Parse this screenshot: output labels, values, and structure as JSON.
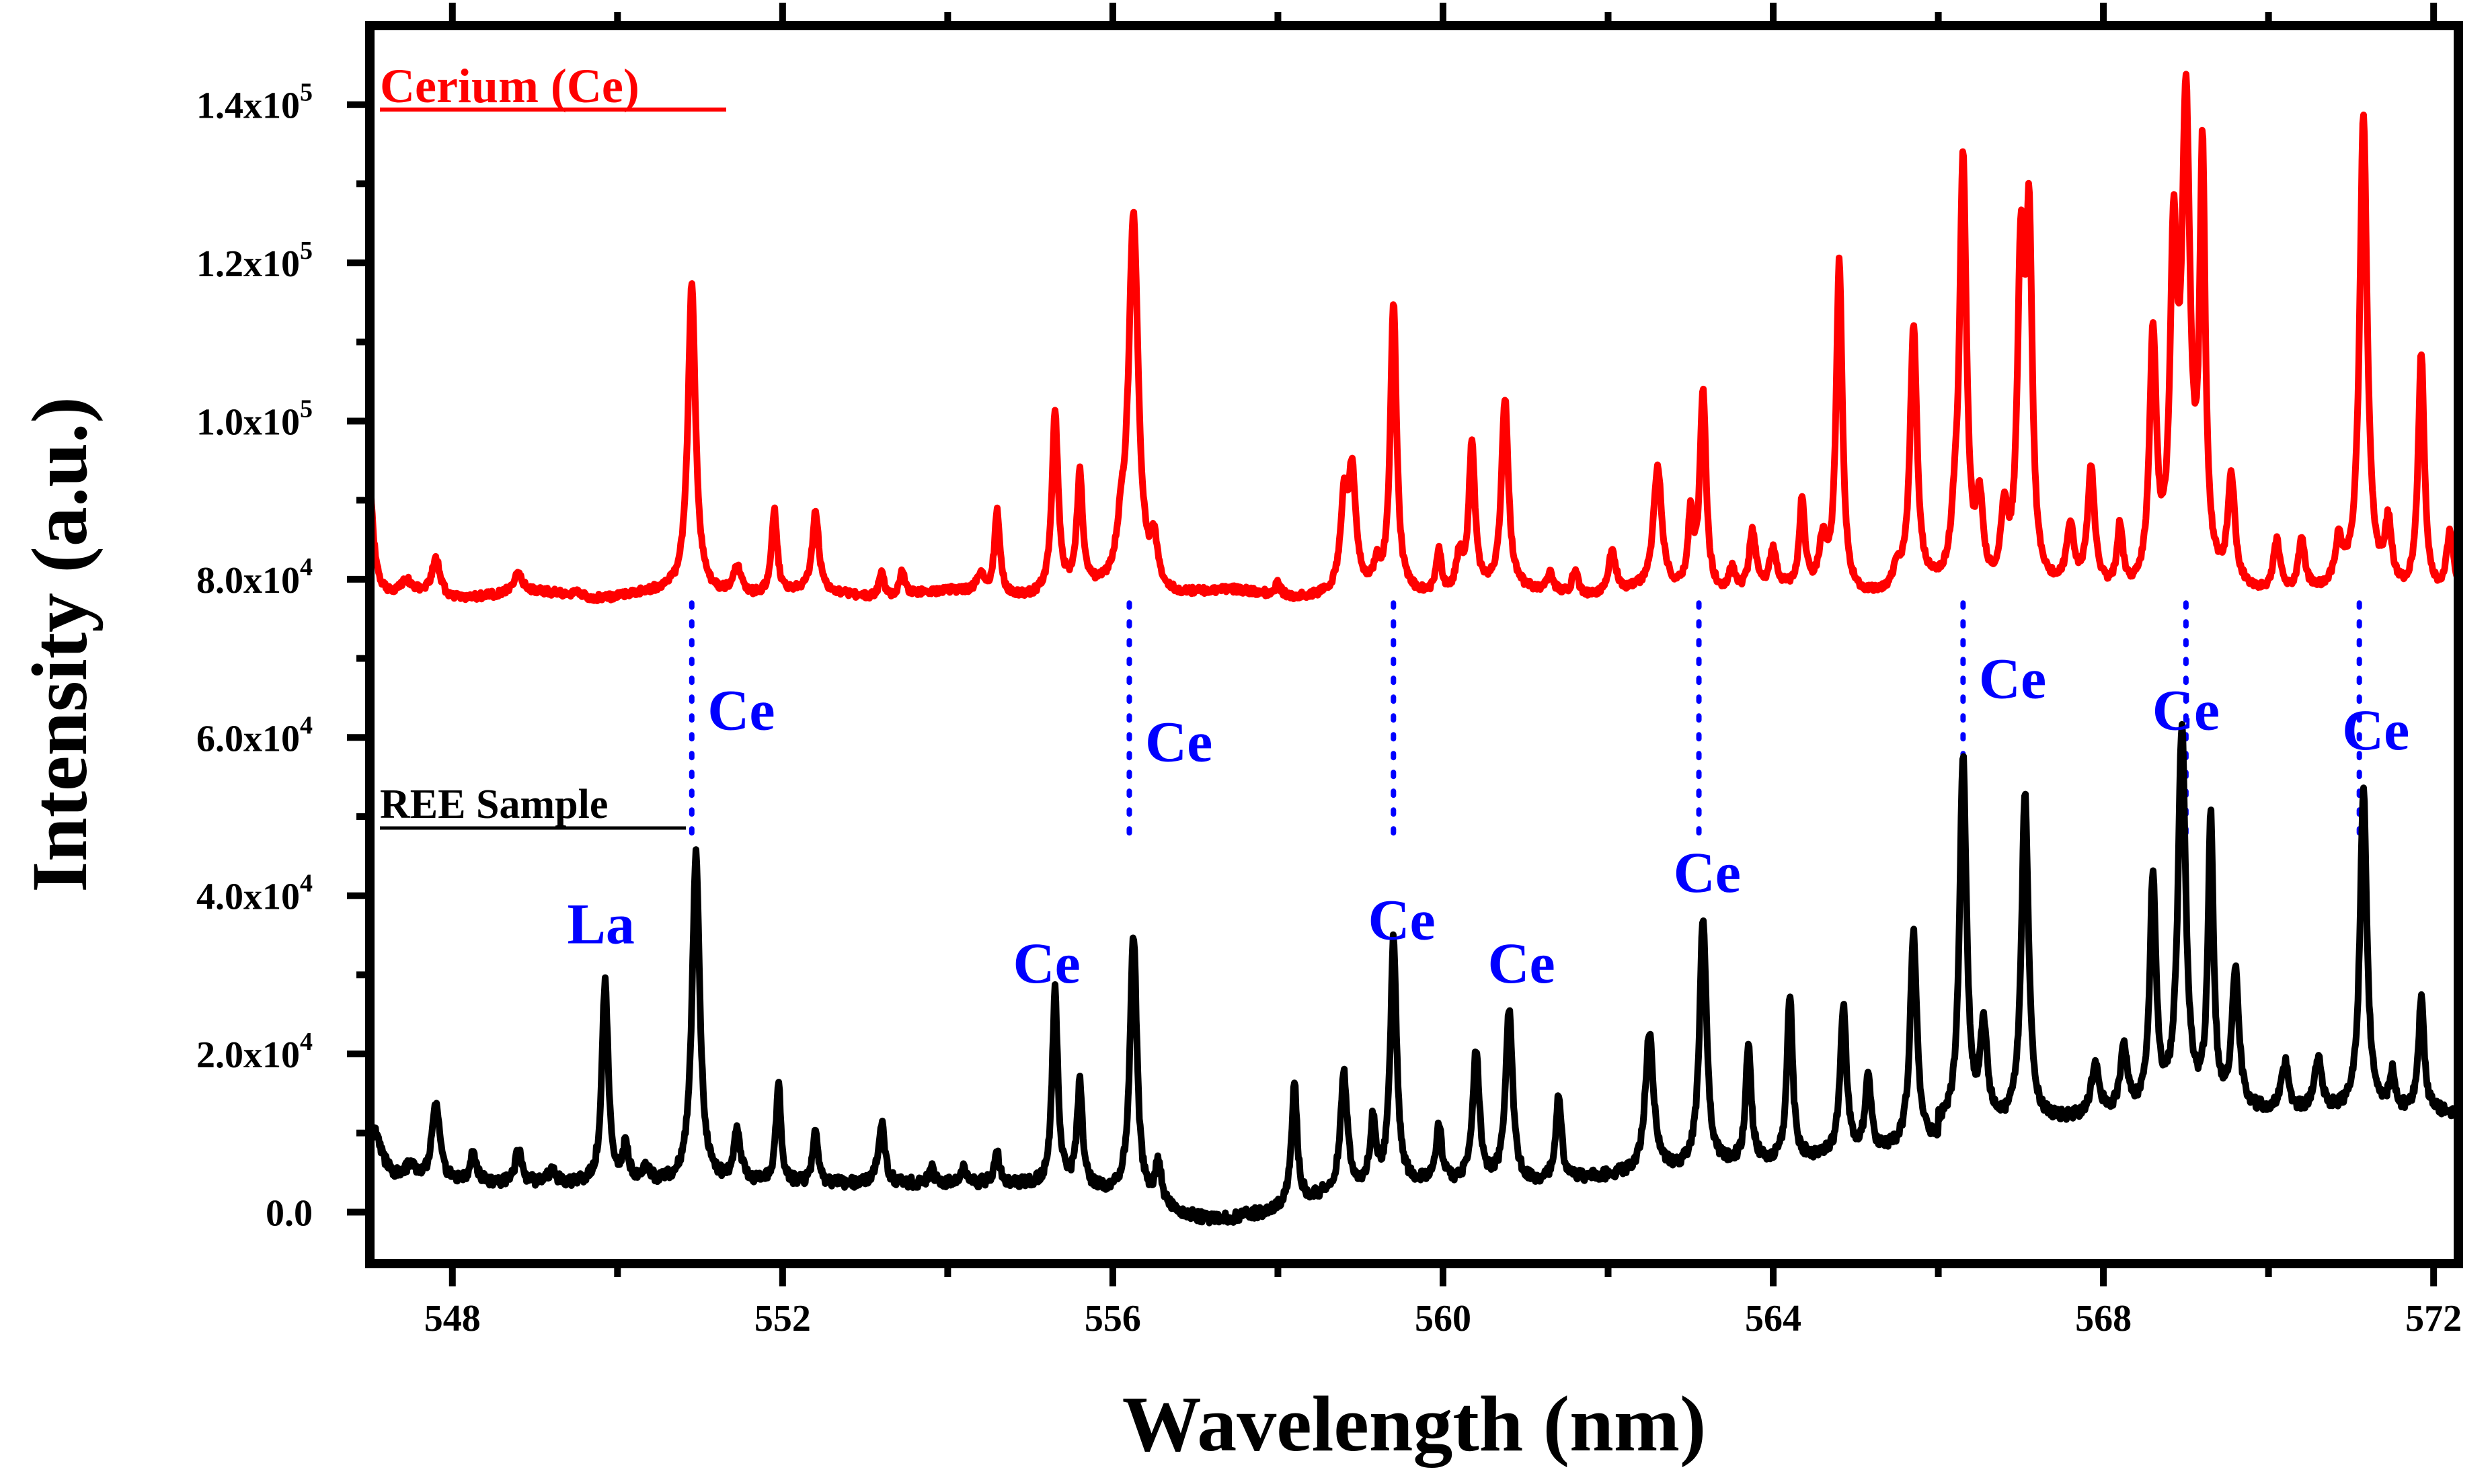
{
  "chart_data": {
    "type": "line",
    "xlabel": "Wavelength (nm)",
    "ylabel": "Intensity (a.u.)",
    "xlim": [
      547,
      572.3
    ],
    "ylim": [
      -6500,
      150000
    ],
    "x_ticks": [
      548,
      552,
      556,
      560,
      564,
      568,
      572
    ],
    "x_tick_labels": [
      "548",
      "552",
      "556",
      "560",
      "564",
      "568",
      "572"
    ],
    "y_ticks": [
      0,
      20000,
      40000,
      60000,
      80000,
      100000,
      120000,
      140000
    ],
    "y_tick_labels": [
      {
        "mantissa": "0.0",
        "exp": ""
      },
      {
        "mantissa": "2.0x10",
        "exp": "4"
      },
      {
        "mantissa": "4.0x10",
        "exp": "4"
      },
      {
        "mantissa": "6.0x10",
        "exp": "4"
      },
      {
        "mantissa": "8.0x10",
        "exp": "4"
      },
      {
        "mantissa": "1.0x10",
        "exp": "5"
      },
      {
        "mantissa": "1.2x10",
        "exp": "5"
      },
      {
        "mantissa": "1.4x10",
        "exp": "5"
      }
    ],
    "legend": {
      "cerium": "Cerium (Ce)",
      "ree": "REE Sample"
    },
    "colors": {
      "cerium": "#ff0000",
      "ree": "#000000",
      "annotation": "#0000ff"
    },
    "series": [
      {
        "name": "Cerium (Ce)",
        "color": "#ff0000",
        "baseline": 78000,
        "peaks": [
          [
            547.45,
            1500,
            0.08
          ],
          [
            547.8,
            4800,
            0.06
          ],
          [
            548.8,
            2500,
            0.05
          ],
          [
            549.5,
            800,
            0.05
          ],
          [
            550.9,
            39000,
            0.055
          ],
          [
            551.45,
            3500,
            0.07
          ],
          [
            551.9,
            10500,
            0.04
          ],
          [
            552.4,
            10000,
            0.045
          ],
          [
            553.2,
            3000,
            0.04
          ],
          [
            553.45,
            3000,
            0.04
          ],
          [
            554.4,
            2000,
            0.06
          ],
          [
            554.6,
            10500,
            0.04
          ],
          [
            555.3,
            22500,
            0.045
          ],
          [
            555.6,
            14500,
            0.04
          ],
          [
            556.1,
            5000,
            0.06
          ],
          [
            556.25,
            47500,
            0.07
          ],
          [
            556.5,
            5500,
            0.05
          ],
          [
            558.0,
            1500,
            0.04
          ],
          [
            558.8,
            11000,
            0.05
          ],
          [
            558.9,
            14500,
            0.05
          ],
          [
            559.2,
            2500,
            0.04
          ],
          [
            559.4,
            36500,
            0.045
          ],
          [
            559.95,
            5500,
            0.04
          ],
          [
            560.2,
            4500,
            0.05
          ],
          [
            560.35,
            18500,
            0.045
          ],
          [
            560.75,
            24000,
            0.05
          ],
          [
            561.3,
            2500,
            0.05
          ],
          [
            561.6,
            3000,
            0.05
          ],
          [
            562.05,
            5500,
            0.05
          ],
          [
            562.6,
            15500,
            0.06
          ],
          [
            563.0,
            9000,
            0.04
          ],
          [
            563.15,
            25500,
            0.045
          ],
          [
            563.5,
            3000,
            0.05
          ],
          [
            563.75,
            7500,
            0.05
          ],
          [
            564.0,
            5000,
            0.05
          ],
          [
            564.35,
            11000,
            0.04
          ],
          [
            564.6,
            6000,
            0.05
          ],
          [
            564.8,
            42000,
            0.045
          ],
          [
            565.5,
            2500,
            0.05
          ],
          [
            565.7,
            33000,
            0.05
          ],
          [
            566.2,
            5500,
            0.05
          ],
          [
            566.3,
            53500,
            0.05
          ],
          [
            566.5,
            10000,
            0.05
          ],
          [
            566.8,
            9000,
            0.05
          ],
          [
            567.0,
            40000,
            0.05
          ],
          [
            567.1,
            43000,
            0.045
          ],
          [
            567.6,
            7500,
            0.05
          ],
          [
            567.85,
            15000,
            0.05
          ],
          [
            568.2,
            8000,
            0.04
          ],
          [
            568.6,
            31500,
            0.05
          ],
          [
            568.85,
            40000,
            0.05
          ],
          [
            569.0,
            58500,
            0.06
          ],
          [
            569.2,
            52000,
            0.04
          ],
          [
            569.55,
            13500,
            0.05
          ],
          [
            570.1,
            6500,
            0.05
          ],
          [
            570.4,
            6500,
            0.05
          ],
          [
            570.85,
            5500,
            0.05
          ],
          [
            571.15,
            59500,
            0.055
          ],
          [
            571.45,
            8000,
            0.05
          ],
          [
            571.85,
            30500,
            0.045
          ],
          [
            572.2,
            7500,
            0.05
          ]
        ]
      },
      {
        "name": "REE Sample",
        "color": "#000000",
        "baseline": 3500,
        "peaks": [
          [
            547.05,
            6500,
            0.12
          ],
          [
            547.5,
            2000,
            0.08
          ],
          [
            547.8,
            9500,
            0.06
          ],
          [
            548.25,
            3500,
            0.05
          ],
          [
            548.8,
            4000,
            0.05
          ],
          [
            549.2,
            1500,
            0.06
          ],
          [
            549.85,
            25500,
            0.045
          ],
          [
            550.1,
            4500,
            0.04
          ],
          [
            550.35,
            2000,
            0.05
          ],
          [
            550.95,
            41500,
            0.055
          ],
          [
            551.45,
            6500,
            0.05
          ],
          [
            551.95,
            13000,
            0.035
          ],
          [
            552.4,
            7000,
            0.035
          ],
          [
            553.2,
            8000,
            0.045
          ],
          [
            553.8,
            2000,
            0.04
          ],
          [
            554.2,
            2000,
            0.04
          ],
          [
            554.6,
            3500,
            0.045
          ],
          [
            555.3,
            24500,
            0.04
          ],
          [
            555.6,
            13000,
            0.04
          ],
          [
            556.25,
            33500,
            0.05
          ],
          [
            556.55,
            5000,
            0.05
          ],
          [
            557.6,
            1000,
            0.04
          ],
          [
            558.2,
            15000,
            0.04
          ],
          [
            558.8,
            14500,
            0.05
          ],
          [
            559.15,
            8000,
            0.04
          ],
          [
            559.4,
            31000,
            0.045
          ],
          [
            559.95,
            7500,
            0.04
          ],
          [
            560.4,
            16500,
            0.05
          ],
          [
            560.8,
            22000,
            0.05
          ],
          [
            561.4,
            11000,
            0.04
          ],
          [
            562.5,
            17500,
            0.06
          ],
          [
            563.15,
            31500,
            0.05
          ],
          [
            563.7,
            15000,
            0.04
          ],
          [
            564.2,
            21000,
            0.04
          ],
          [
            564.85,
            19000,
            0.045
          ],
          [
            565.15,
            10000,
            0.04
          ],
          [
            565.7,
            27000,
            0.05
          ],
          [
            566.3,
            46500,
            0.05
          ],
          [
            566.55,
            12000,
            0.05
          ],
          [
            567.05,
            41500,
            0.05
          ],
          [
            567.9,
            6500,
            0.06
          ],
          [
            568.25,
            8500,
            0.05
          ],
          [
            568.6,
            29500,
            0.045
          ],
          [
            568.95,
            48000,
            0.055
          ],
          [
            569.3,
            36000,
            0.04
          ],
          [
            569.6,
            17500,
            0.05
          ],
          [
            570.2,
            6000,
            0.05
          ],
          [
            570.6,
            6500,
            0.05
          ],
          [
            571.15,
            40500,
            0.05
          ],
          [
            571.5,
            4500,
            0.04
          ],
          [
            571.85,
            14500,
            0.04
          ]
        ]
      }
    ],
    "dotted_links": [
      550.9,
      556.2,
      559.4,
      563.1,
      566.3,
      569.0,
      571.1
    ],
    "annotations": [
      {
        "text": "Ce",
        "x": 551.5,
        "y": 61000
      },
      {
        "text": "Ce",
        "x": 556.8,
        "y": 57000
      },
      {
        "text": "Ce",
        "x": 566.9,
        "y": 65000
      },
      {
        "text": "Ce",
        "x": 569.0,
        "y": 61000
      },
      {
        "text": "Ce",
        "x": 571.3,
        "y": 58500
      },
      {
        "text": "Ce",
        "x": 563.2,
        "y": 40500
      },
      {
        "text": "La",
        "x": 549.8,
        "y": 34000
      },
      {
        "text": "Ce",
        "x": 555.2,
        "y": 29000
      },
      {
        "text": "Ce",
        "x": 559.5,
        "y": 34500
      },
      {
        "text": "Ce",
        "x": 560.95,
        "y": 29000
      }
    ]
  }
}
